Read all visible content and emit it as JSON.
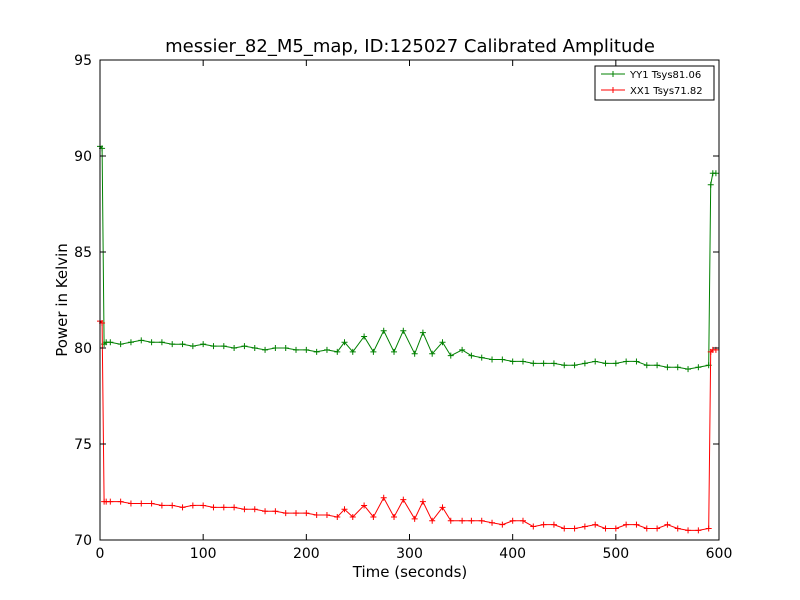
{
  "chart_data": {
    "type": "line",
    "title": "messier_82_M5_map, ID:125027 Calibrated Amplitude",
    "xlabel": "Time (seconds)",
    "ylabel": "Power in Kelvin",
    "xlim": [
      0,
      600
    ],
    "ylim": [
      70,
      95
    ],
    "xticks": [
      0,
      100,
      200,
      300,
      400,
      500,
      600
    ],
    "yticks": [
      70,
      75,
      80,
      85,
      90,
      95
    ],
    "grid": false,
    "legend_position": "top-right",
    "series": [
      {
        "name": "YY1 Tsys81.06",
        "color": "#008000",
        "marker": "plus",
        "x": [
          0,
          2,
          4,
          6,
          10,
          20,
          30,
          40,
          50,
          60,
          70,
          80,
          90,
          100,
          110,
          120,
          130,
          140,
          150,
          160,
          170,
          180,
          190,
          200,
          210,
          220,
          230,
          237,
          245,
          256,
          265,
          275,
          285,
          294,
          305,
          313,
          322,
          332,
          340,
          351,
          360,
          370,
          380,
          390,
          400,
          410,
          420,
          430,
          440,
          450,
          460,
          470,
          480,
          490,
          500,
          510,
          520,
          530,
          540,
          550,
          560,
          570,
          580,
          590,
          592,
          594,
          597
        ],
        "y": [
          90.5,
          90.4,
          80.2,
          80.3,
          80.3,
          80.2,
          80.3,
          80.4,
          80.3,
          80.3,
          80.2,
          80.2,
          80.1,
          80.2,
          80.1,
          80.1,
          80.0,
          80.1,
          80.0,
          79.9,
          80.0,
          80.0,
          79.9,
          79.9,
          79.8,
          79.9,
          79.8,
          80.3,
          79.8,
          80.6,
          79.8,
          80.9,
          79.8,
          80.9,
          79.7,
          80.8,
          79.7,
          80.3,
          79.6,
          79.9,
          79.6,
          79.5,
          79.4,
          79.4,
          79.3,
          79.3,
          79.2,
          79.2,
          79.2,
          79.1,
          79.1,
          79.2,
          79.3,
          79.2,
          79.2,
          79.3,
          79.3,
          79.1,
          79.1,
          79.0,
          79.0,
          78.9,
          79.0,
          79.1,
          88.5,
          89.1,
          89.1
        ]
      },
      {
        "name": "XX1 Tsys71.82",
        "color": "#ff0000",
        "marker": "plus",
        "x": [
          0,
          2,
          4,
          6,
          10,
          20,
          30,
          40,
          50,
          60,
          70,
          80,
          90,
          100,
          110,
          120,
          130,
          140,
          150,
          160,
          170,
          180,
          190,
          200,
          210,
          220,
          230,
          237,
          245,
          256,
          265,
          275,
          285,
          294,
          305,
          313,
          322,
          332,
          340,
          351,
          360,
          370,
          380,
          390,
          400,
          410,
          420,
          430,
          440,
          450,
          460,
          470,
          480,
          490,
          500,
          510,
          520,
          530,
          540,
          550,
          560,
          570,
          580,
          590,
          592,
          594,
          597
        ],
        "y": [
          81.4,
          81.3,
          72.0,
          72.0,
          72.0,
          72.0,
          71.9,
          71.9,
          71.9,
          71.8,
          71.8,
          71.7,
          71.8,
          71.8,
          71.7,
          71.7,
          71.7,
          71.6,
          71.6,
          71.5,
          71.5,
          71.4,
          71.4,
          71.4,
          71.3,
          71.3,
          71.2,
          71.6,
          71.2,
          71.8,
          71.2,
          72.2,
          71.2,
          72.1,
          71.1,
          72.0,
          71.0,
          71.7,
          71.0,
          71.0,
          71.0,
          71.0,
          70.9,
          70.8,
          71.0,
          71.0,
          70.7,
          70.8,
          70.8,
          70.6,
          70.6,
          70.7,
          70.8,
          70.6,
          70.6,
          70.8,
          70.8,
          70.6,
          70.6,
          70.8,
          70.6,
          70.5,
          70.5,
          70.6,
          79.8,
          79.9,
          79.9
        ]
      }
    ]
  }
}
